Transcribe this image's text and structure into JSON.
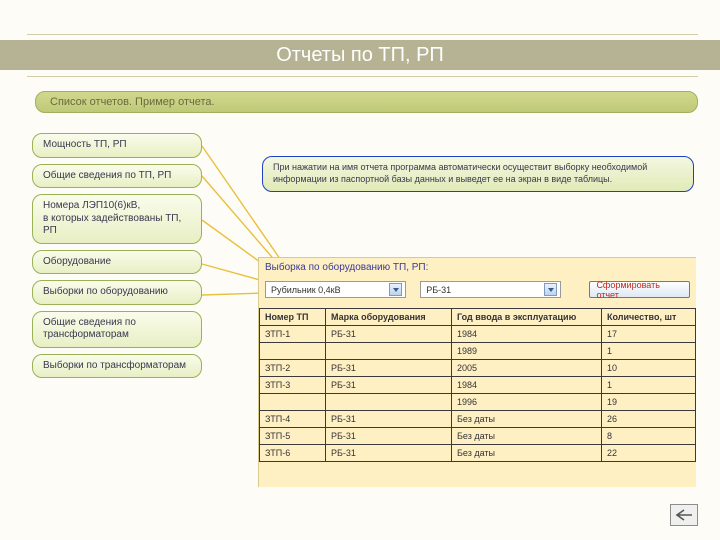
{
  "title": "Отчеты по ТП, РП",
  "subtitle": "Список отчетов. Пример отчета.",
  "sidebar": {
    "items": [
      "Мощность ТП, РП",
      "Общие сведения по ТП, РП",
      "Номера ЛЭП10(6)кВ,\nв которых задействованы ТП, РП",
      "Оборудование",
      "Выборки по оборудованию",
      "Общие сведения по трансформаторам",
      "Выборки по трансформаторам"
    ]
  },
  "info_text": "При нажатии на имя отчета программа автоматически осуществит выборку необходимой информации из паспортной базы данных и выведет ее на экран в виде таблицы.",
  "panel": {
    "title": "Выборка по оборудованию ТП, РП:",
    "select1": "Рубильник 0,4кВ",
    "select2": "РБ-31",
    "button": "Сформировать отчет",
    "columns": [
      "Номер ТП",
      "Марка оборудования",
      "Год ввода в эксплуатацию",
      "Количество, шт"
    ],
    "col_widths": [
      "66px",
      "126px",
      "150px",
      "auto"
    ],
    "rows": [
      [
        "ЗТП-1",
        "РБ-31",
        "1984",
        "17"
      ],
      [
        "",
        "",
        "1989",
        "1"
      ],
      [
        "ЗТП-2",
        "РБ-31",
        "2005",
        "10"
      ],
      [
        "ЗТП-3",
        "РБ-31",
        "1984",
        "1"
      ],
      [
        "",
        "",
        "1996",
        "19"
      ],
      [
        "ЗТП-4",
        "РБ-31",
        "Без даты",
        "26"
      ],
      [
        "ЗТП-5",
        "РБ-31",
        "Без даты",
        "8"
      ],
      [
        "ЗТП-6",
        "РБ-31",
        "Без даты",
        "22"
      ]
    ]
  },
  "colors": {
    "band": "#b5b393",
    "pill_border": "#a1b05e",
    "side_border": "#9ab256",
    "info_border": "#2040c0",
    "panel_bg": "#fff0c4",
    "arrow": "#e8c03e"
  }
}
